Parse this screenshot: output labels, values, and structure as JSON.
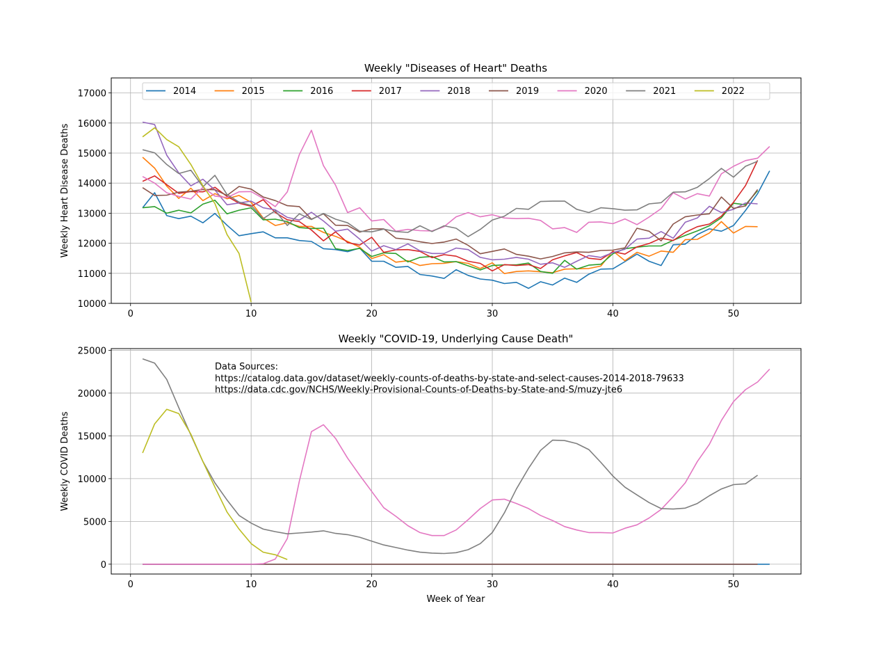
{
  "chart_data": [
    {
      "type": "line",
      "title": "Weekly \"Diseases of Heart\" Deaths",
      "xlabel": "",
      "ylabel": "Weekly Heart Disease Deaths",
      "xlim": [
        -1.6,
        55.6
      ],
      "ylim": [
        10000,
        17500
      ],
      "xticks": [
        0,
        10,
        20,
        30,
        40,
        50
      ],
      "yticks": [
        10000,
        11000,
        12000,
        13000,
        14000,
        15000,
        16000,
        17000
      ],
      "grid": true,
      "legend": "top, single row",
      "series": [
        {
          "name": "2014",
          "color": "#1f77b4",
          "x_start": 1,
          "values": [
            13180,
            13680,
            12920,
            12820,
            12900,
            12680,
            12990,
            12600,
            12250,
            12320,
            12380,
            12180,
            12180,
            12090,
            12060,
            11820,
            11790,
            11720,
            11840,
            11400,
            11400,
            11200,
            11230,
            10960,
            10910,
            10830,
            11120,
            10930,
            10810,
            10770,
            10660,
            10700,
            10500,
            10720,
            10610,
            10840,
            10700,
            10970,
            11140,
            11150,
            11390,
            11640,
            11400,
            11260,
            11950,
            11970,
            12290,
            12480,
            12400,
            12590,
            13090,
            13650,
            14410
          ]
        },
        {
          "name": "2015",
          "color": "#ff7f0e",
          "x_start": 1,
          "values": [
            14860,
            14500,
            13900,
            13490,
            13830,
            13420,
            13650,
            13480,
            13590,
            13360,
            12840,
            12590,
            12680,
            12560,
            12560,
            12360,
            12230,
            12060,
            11870,
            11490,
            11620,
            11370,
            11420,
            11260,
            11320,
            11330,
            11390,
            11330,
            11160,
            11350,
            10990,
            11060,
            11080,
            11050,
            11020,
            11140,
            11150,
            11160,
            11240,
            11740,
            11420,
            11700,
            11570,
            11740,
            11700,
            12120,
            12130,
            12340,
            12720,
            12340,
            12560,
            12550
          ]
        },
        {
          "name": "2016",
          "color": "#2ca02c",
          "x_start": 1,
          "values": [
            13180,
            13220,
            13000,
            13100,
            13010,
            13300,
            13430,
            12980,
            13100,
            13180,
            12780,
            12800,
            12720,
            12520,
            12490,
            12500,
            11820,
            11760,
            11830,
            11560,
            11680,
            11660,
            11380,
            11530,
            11560,
            11380,
            11390,
            11250,
            11110,
            11260,
            11280,
            11280,
            11340,
            11060,
            11000,
            11430,
            11140,
            11270,
            11300,
            11650,
            11820,
            11870,
            11910,
            11910,
            12100,
            12260,
            12410,
            12580,
            12850,
            13330,
            13280,
            13750
          ]
        },
        {
          "name": "2017",
          "color": "#d62728",
          "x_start": 1,
          "values": [
            14060,
            14240,
            13950,
            13660,
            13720,
            13710,
            13860,
            13560,
            13330,
            13230,
            13450,
            13020,
            12780,
            12720,
            12440,
            12080,
            12380,
            12020,
            11940,
            12200,
            11700,
            11780,
            11790,
            11730,
            11520,
            11620,
            11570,
            11400,
            11330,
            11080,
            11290,
            11260,
            11290,
            11160,
            11450,
            11580,
            11690,
            11500,
            11460,
            11720,
            11640,
            11880,
            11990,
            12170,
            12090,
            12360,
            12550,
            12640,
            12900,
            13360,
            13920,
            14760
          ]
        },
        {
          "name": "2018",
          "color": "#9467bd",
          "x_start": 1,
          "values": [
            16030,
            15950,
            14930,
            14340,
            13910,
            14130,
            13770,
            13280,
            13340,
            13400,
            13180,
            13110,
            12860,
            12770,
            13030,
            12740,
            12400,
            12470,
            12140,
            11740,
            11920,
            11790,
            11980,
            11750,
            11660,
            11660,
            11840,
            11790,
            11530,
            11450,
            11470,
            11530,
            11470,
            11300,
            11350,
            11200,
            11400,
            11590,
            11530,
            11690,
            11800,
            12140,
            12170,
            12390,
            12170,
            12700,
            12840,
            13230,
            13020,
            13130,
            13340,
            13310
          ]
        },
        {
          "name": "2019",
          "color": "#8c564b",
          "x_start": 1,
          "values": [
            13850,
            13590,
            13600,
            13700,
            13730,
            13790,
            13780,
            13590,
            13890,
            13800,
            13540,
            13420,
            13250,
            13220,
            12800,
            12980,
            12600,
            12590,
            12370,
            12480,
            12480,
            12170,
            12130,
            12050,
            11990,
            12040,
            12140,
            11930,
            11650,
            11730,
            11810,
            11630,
            11570,
            11480,
            11560,
            11680,
            11710,
            11700,
            11760,
            11770,
            11850,
            12500,
            12400,
            12080,
            12640,
            12880,
            12940,
            12980,
            13540,
            13160,
            13240,
            13790
          ]
        },
        {
          "name": "2020",
          "color": "#e377c2",
          "x_start": 1,
          "values": [
            14220,
            14000,
            13680,
            13560,
            13470,
            13860,
            13570,
            13520,
            13710,
            13720,
            13490,
            13220,
            13710,
            14950,
            15760,
            14580,
            13930,
            13020,
            13180,
            12740,
            12790,
            12400,
            12460,
            12420,
            12410,
            12550,
            12880,
            13020,
            12880,
            12950,
            12840,
            12820,
            12830,
            12760,
            12480,
            12520,
            12360,
            12700,
            12710,
            12650,
            12810,
            12620,
            12870,
            13150,
            13680,
            13470,
            13650,
            13570,
            14310,
            14560,
            14750,
            14830,
            15220
          ]
        },
        {
          "name": "2021",
          "color": "#7f7f7f",
          "x_start": 1,
          "values": [
            15110,
            15010,
            14620,
            14320,
            14430,
            13880,
            14260,
            13620,
            13370,
            13260,
            12820,
            13080,
            12590,
            12980,
            12790,
            12990,
            12800,
            12680,
            12400,
            12380,
            12470,
            12390,
            12360,
            12580,
            12390,
            12580,
            12500,
            12220,
            12460,
            12770,
            12900,
            13160,
            13130,
            13390,
            13400,
            13400,
            13130,
            13020,
            13180,
            13150,
            13100,
            13110,
            13310,
            13350,
            13700,
            13710,
            13860,
            14150,
            14490,
            14200,
            14560,
            14730
          ]
        },
        {
          "name": "2022",
          "color": "#bcbd22",
          "x_start": 1,
          "values": [
            15540,
            15840,
            15450,
            15210,
            14620,
            13910,
            13320,
            12290,
            11660,
            10040
          ]
        }
      ]
    },
    {
      "type": "line",
      "title": "Weekly \"COVID-19, Underlying Cause Death\"",
      "xlabel": "Week of Year",
      "ylabel": "Weekly COVID Deaths",
      "xlim": [
        -1.6,
        55.6
      ],
      "ylim": [
        -1150,
        25200
      ],
      "xticks": [
        0,
        10,
        20,
        30,
        40,
        50
      ],
      "yticks": [
        0,
        5000,
        10000,
        15000,
        20000,
        25000
      ],
      "grid": true,
      "annotation": {
        "lines": [
          "Data Sources:",
          "https://catalog.data.gov/dataset/weekly-counts-of-deaths-by-state-and-select-causes-2014-2018-79633",
          "https://data.cdc.gov/NCHS/Weekly-Provisional-Counts-of-Deaths-by-State-and-S/muzy-jte6"
        ]
      },
      "series": [
        {
          "name": "2014",
          "color": "#1f77b4",
          "x_start": 1,
          "values": [
            0,
            0,
            0,
            0,
            0,
            0,
            0,
            0,
            0,
            0,
            0,
            0,
            0,
            0,
            0,
            0,
            0,
            0,
            0,
            0,
            0,
            0,
            0,
            0,
            0,
            0,
            0,
            0,
            0,
            0,
            0,
            0,
            0,
            0,
            0,
            0,
            0,
            0,
            0,
            0,
            0,
            0,
            0,
            0,
            0,
            0,
            0,
            0,
            0,
            0,
            0,
            0,
            0
          ]
        },
        {
          "name": "2019",
          "color": "#8c564b",
          "x_start": 1,
          "values": [
            0,
            0,
            0,
            0,
            0,
            0,
            0,
            0,
            0,
            0,
            0,
            0,
            0,
            0,
            0,
            0,
            0,
            0,
            0,
            0,
            0,
            0,
            0,
            0,
            0,
            0,
            0,
            0,
            0,
            0,
            0,
            0,
            0,
            0,
            0,
            0,
            0,
            0,
            0,
            0,
            0,
            0,
            0,
            0,
            0,
            0,
            0,
            0,
            0,
            0,
            0,
            0
          ]
        },
        {
          "name": "2020",
          "color": "#e377c2",
          "x_start": 1,
          "values": [
            0,
            0,
            0,
            0,
            0,
            0,
            0,
            0,
            0,
            0,
            50,
            600,
            3000,
            9700,
            15500,
            16300,
            14700,
            12400,
            10400,
            8500,
            6600,
            5600,
            4500,
            3700,
            3350,
            3350,
            4000,
            5200,
            6500,
            7500,
            7600,
            7100,
            6500,
            5700,
            5100,
            4400,
            4000,
            3700,
            3700,
            3650,
            4200,
            4600,
            5400,
            6400,
            7900,
            9500,
            12000,
            14000,
            16800,
            19000,
            20400,
            21300,
            22800
          ]
        },
        {
          "name": "2021",
          "color": "#7f7f7f",
          "x_start": 1,
          "values": [
            24000,
            23500,
            21600,
            18300,
            15100,
            12000,
            9500,
            7500,
            5700,
            4800,
            4100,
            3800,
            3550,
            3650,
            3750,
            3900,
            3600,
            3450,
            3150,
            2700,
            2250,
            1950,
            1650,
            1400,
            1300,
            1250,
            1350,
            1700,
            2400,
            3700,
            6000,
            8800,
            11200,
            13300,
            14500,
            14450,
            14100,
            13400,
            11900,
            10300,
            9000,
            8100,
            7200,
            6500,
            6450,
            6550,
            7100,
            8000,
            8800,
            9300,
            9400,
            10400
          ]
        },
        {
          "name": "2022",
          "color": "#bcbd22",
          "x_start": 1,
          "values": [
            13000,
            16400,
            18100,
            17600,
            15200,
            12000,
            9000,
            6100,
            4100,
            2400,
            1400,
            1100,
            550
          ]
        }
      ]
    }
  ]
}
